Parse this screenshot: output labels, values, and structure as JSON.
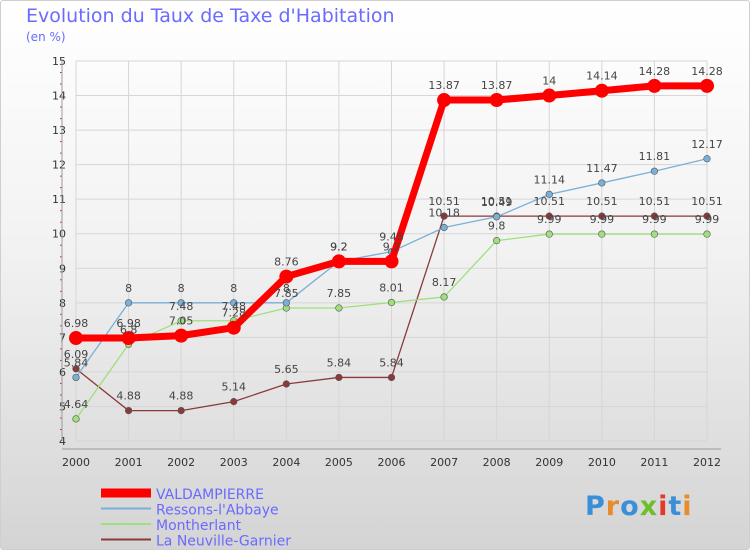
{
  "title": "Evolution du Taux de Taxe d'Habitation",
  "subtitle": "(en %)",
  "brand": {
    "text": "Proxiti",
    "colors": [
      "#3a8fd8",
      "#e98a2c",
      "#3a8fd8",
      "#6bbf2a",
      "#e4392a",
      "#3a8fd8",
      "#e98a2c"
    ]
  },
  "chart_data": {
    "type": "line",
    "x": [
      "2000",
      "2001",
      "2002",
      "2003",
      "2004",
      "2005",
      "2006",
      "2007",
      "2008",
      "2009",
      "2010",
      "2011",
      "2012"
    ],
    "ylim": [
      4,
      15
    ],
    "yticks": [
      "4",
      "5",
      "6",
      "7",
      "8",
      "9",
      "10",
      "11",
      "12",
      "13",
      "14",
      "15"
    ],
    "grid": true,
    "legend_position": "bottom-left",
    "series": [
      {
        "name": "VALDAMPIERRE",
        "color": "#ff0000",
        "values": [
          6.98,
          6.98,
          7.05,
          7.28,
          8.76,
          9.2,
          9.2,
          13.87,
          13.87,
          14,
          14.14,
          14.28,
          14.28
        ],
        "labels": [
          "6.98",
          "6.98",
          "7.05",
          "7.28",
          "8.76",
          "9.2",
          "9.2",
          "13.87",
          "13.87",
          "14",
          "14.14",
          "14.28",
          "14.28"
        ]
      },
      {
        "name": "Ressons-l'Abbaye",
        "color": "#7ab0d8",
        "values": [
          5.84,
          8,
          8,
          8,
          8,
          9.2,
          9.48,
          10.18,
          10.49,
          11.14,
          11.47,
          11.81,
          12.17
        ],
        "labels": [
          "5.84",
          "8",
          "8",
          "8",
          "8",
          "9.2",
          "9.48",
          "10.18",
          "10.49",
          "11.14",
          "11.47",
          "11.81",
          "12.17"
        ]
      },
      {
        "name": "Montherlant",
        "color": "#9ee07c",
        "values": [
          4.64,
          6.8,
          7.48,
          7.48,
          7.85,
          7.85,
          8.01,
          8.17,
          9.8,
          9.99,
          9.99,
          9.99,
          9.99
        ],
        "labels": [
          "4.64",
          "6.8",
          "7.48",
          "7.48",
          "7.85",
          "7.85",
          "8.01",
          "8.17",
          "9.8",
          "9.99",
          "9.99",
          "9.99",
          "9.99"
        ]
      },
      {
        "name": "La Neuville-Garnier",
        "color": "#8a3a3a",
        "values": [
          6.09,
          4.88,
          4.88,
          5.14,
          5.65,
          5.84,
          5.84,
          10.51,
          10.51,
          10.51,
          10.51,
          10.51,
          10.51
        ],
        "labels": [
          "6.09",
          "4.88",
          "4.88",
          "5.14",
          "5.65",
          "5.84",
          "5.84",
          "10.51",
          "10.51",
          "10.51",
          "10.51",
          "10.51",
          "10.51"
        ]
      }
    ]
  }
}
